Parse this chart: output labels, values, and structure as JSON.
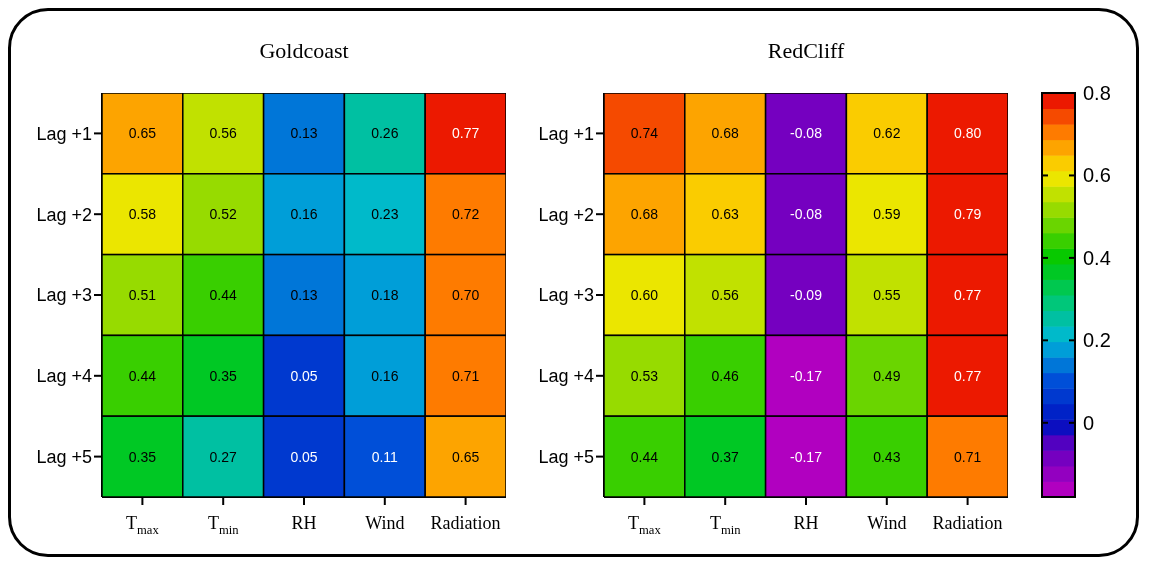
{
  "chart_data": [
    {
      "type": "heatmap",
      "title": "Goldcoast",
      "categories": [
        "T$_{max}$",
        "T$_{min}$",
        "RH",
        "Wind",
        "Radiation"
      ],
      "y_categories": [
        "Lag +1",
        "Lag +2",
        "Lag +3",
        "Lag +4",
        "Lag +5"
      ],
      "cells": [
        [
          0.65,
          0.56,
          0.13,
          0.26,
          0.77
        ],
        [
          0.58,
          0.52,
          0.16,
          0.23,
          0.72
        ],
        [
          0.51,
          0.44,
          0.13,
          0.18,
          0.7
        ],
        [
          0.44,
          0.35,
          0.05,
          0.16,
          0.71
        ],
        [
          0.35,
          0.27,
          0.05,
          0.11,
          0.65
        ]
      ],
      "cell_labels": [
        [
          "0.65",
          "0.56",
          "0.13",
          "0.26",
          "0.77"
        ],
        [
          "0.58",
          "0.52",
          "0.16",
          "0.23",
          "0.72"
        ],
        [
          "0.51",
          "0.44",
          "0.13",
          "0.18",
          "0.70"
        ],
        [
          "0.44",
          "0.35",
          "0.05",
          "0.16",
          "0.71"
        ],
        [
          "0.35",
          "0.27",
          "0.05",
          "0.11",
          "0.65"
        ]
      ]
    },
    {
      "type": "heatmap",
      "title": "RedCliff",
      "categories": [
        "T$_{max}$",
        "T$_{min}$",
        "RH",
        "Wind",
        "Radiation"
      ],
      "y_categories": [
        "Lag +1",
        "Lag +2",
        "Lag +3",
        "Lag +4",
        "Lag +5"
      ],
      "cells": [
        [
          0.74,
          0.68,
          -0.08,
          0.62,
          0.8
        ],
        [
          0.68,
          0.63,
          -0.08,
          0.59,
          0.79
        ],
        [
          0.6,
          0.56,
          -0.09,
          0.55,
          0.77
        ],
        [
          0.53,
          0.46,
          -0.17,
          0.49,
          0.77
        ],
        [
          0.44,
          0.37,
          -0.17,
          0.43,
          0.71
        ]
      ],
      "cell_labels": [
        [
          "0.74",
          "0.68",
          "-0.08",
          "0.62",
          "0.80"
        ],
        [
          "0.68",
          "0.63",
          "-0.08",
          "0.59",
          "0.79"
        ],
        [
          "0.60",
          "0.56",
          "-0.09",
          "0.55",
          "0.77"
        ],
        [
          "0.53",
          "0.46",
          "-0.17",
          "0.49",
          "0.77"
        ],
        [
          "0.44",
          "0.37",
          "-0.17",
          "0.43",
          "0.71"
        ]
      ],
      "clim": [
        -0.18,
        0.8
      ],
      "cticks": [
        0,
        0.2,
        0.4,
        0.6,
        0.8
      ]
    }
  ]
}
